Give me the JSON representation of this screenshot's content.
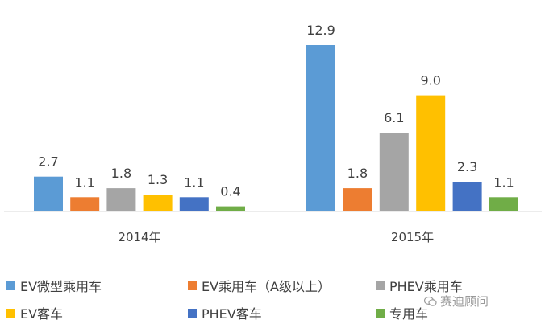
{
  "chart_data": {
    "type": "bar",
    "categories": [
      "2014年",
      "2015年"
    ],
    "series": [
      {
        "name": "EV微型乘用车",
        "values": [
          2.7,
          12.9
        ],
        "color": "#5b9bd5"
      },
      {
        "name": "EV乘用车（A级以上）",
        "values": [
          1.1,
          1.8
        ],
        "color": "#ed7d31"
      },
      {
        "name": "PHEV乘用车",
        "values": [
          1.8,
          6.1
        ],
        "color": "#a5a5a5"
      },
      {
        "name": "EV客车",
        "values": [
          1.3,
          9.0
        ],
        "color": "#ffc000"
      },
      {
        "name": "PHEV客车",
        "values": [
          1.1,
          2.3
        ],
        "color": "#4472c4"
      },
      {
        "name": "专用车",
        "values": [
          0.4,
          1.1
        ],
        "color": "#70ad47"
      }
    ],
    "value_labels": [
      [
        "2.7",
        "1.1",
        "1.8",
        "1.3",
        "1.1",
        "0.4"
      ],
      [
        "12.9",
        "1.8",
        "6.1",
        "9.0",
        "2.3",
        "1.1"
      ]
    ],
    "ylim": [
      0,
      14
    ],
    "grid": false,
    "legend_position": "bottom"
  },
  "watermark": {
    "text": "赛迪顾问",
    "icon": "wechat-icon"
  }
}
